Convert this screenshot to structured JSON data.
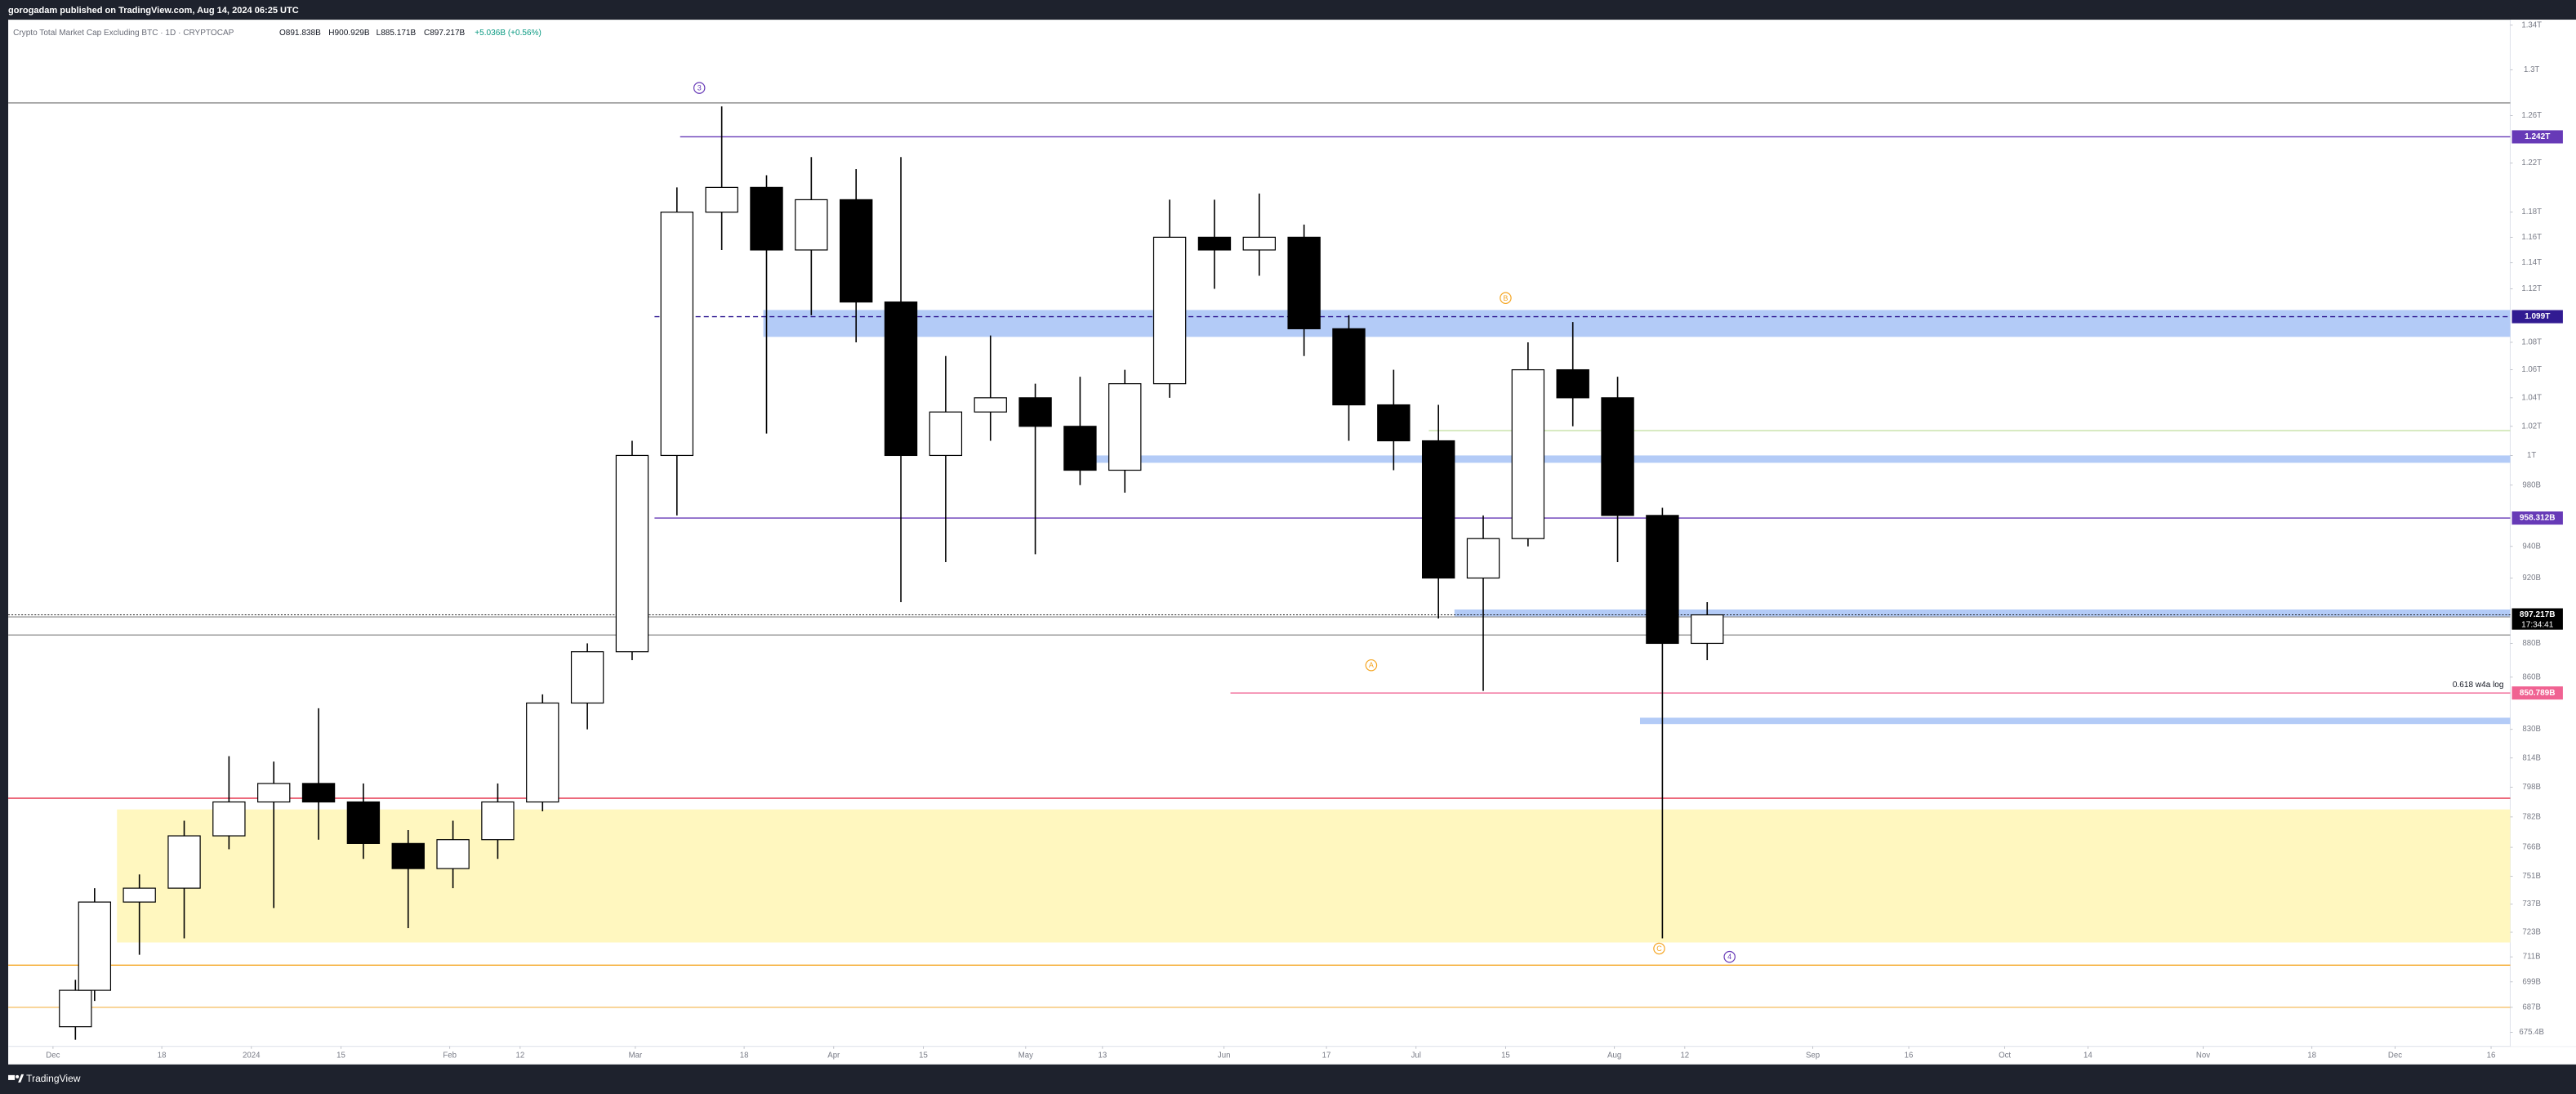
{
  "header": {
    "publisher": "gorogadam published on TradingView.com, Aug 14, 2024 06:25 UTC",
    "footer": "TradingView"
  },
  "chart_data": {
    "type": "candlestick",
    "title": "Crypto Total Market Cap Excluding BTC · 1D · CRYPTOCAP",
    "legend_values": [
      "O891.838B",
      "H900.929B",
      "L885.171B",
      "C897.217B",
      "+5.036B (+0.56%)"
    ],
    "x": [
      "2023-12-01",
      "2023-12-04",
      "2023-12-11",
      "2023-12-18",
      "2023-12-25",
      "2024-01-01",
      "2024-01-08",
      "2024-01-15",
      "2024-01-22",
      "2024-01-29",
      "2024-02-05",
      "2024-02-12",
      "2024-02-19",
      "2024-02-26",
      "2024-03-04",
      "2024-03-11",
      "2024-03-18",
      "2024-03-25",
      "2024-04-01",
      "2024-04-08",
      "2024-04-15",
      "2024-04-22",
      "2024-04-29",
      "2024-05-06",
      "2024-05-13",
      "2024-05-20",
      "2024-05-27",
      "2024-06-03",
      "2024-06-10",
      "2024-06-17",
      "2024-06-24",
      "2024-07-01",
      "2024-07-08",
      "2024-07-15",
      "2024-07-22",
      "2024-07-29",
      "2024-08-05",
      "2024-08-12"
    ],
    "open": [
      678,
      695,
      738,
      745,
      772,
      790,
      800,
      790,
      768,
      755,
      770,
      790,
      845,
      875,
      1000,
      1180,
      1200,
      1150,
      1190,
      1110,
      1000,
      1030,
      1040,
      1020,
      990,
      1050,
      1160,
      1150,
      1160,
      1090,
      1035,
      1010,
      920,
      945,
      1060,
      1040,
      960,
      880
    ],
    "high": [
      700,
      745,
      752,
      780,
      815,
      812,
      842,
      800,
      775,
      780,
      800,
      850,
      880,
      1010,
      1200,
      1268,
      1210,
      1225,
      1215,
      1225,
      1070,
      1085,
      1050,
      1055,
      1060,
      1190,
      1190,
      1195,
      1170,
      1100,
      1060,
      1035,
      960,
      1080,
      1095,
      1055,
      965,
      905
    ],
    "low": [
      672,
      690,
      712,
      720,
      765,
      735,
      770,
      760,
      725,
      745,
      760,
      785,
      830,
      870,
      960,
      1150,
      1015,
      1100,
      1080,
      905,
      930,
      1010,
      935,
      980,
      975,
      1040,
      1120,
      1130,
      1070,
      1010,
      990,
      895,
      852,
      940,
      1020,
      930,
      720,
      870
    ],
    "close": [
      695,
      738,
      745,
      772,
      790,
      800,
      790,
      768,
      755,
      770,
      790,
      845,
      875,
      1000,
      1180,
      1200,
      1150,
      1190,
      1110,
      1000,
      1030,
      1040,
      1020,
      990,
      1050,
      1160,
      1150,
      1160,
      1090,
      1035,
      1010,
      920,
      945,
      1060,
      1040,
      960,
      880,
      897.217
    ],
    "up_color": "#ffffff",
    "down_color": "#000000",
    "wick_color": "#000000",
    "log_scale": true,
    "ylim": [
      669,
      1345
    ],
    "yticks": [
      {
        "value": 1340,
        "label": "1.34T"
      },
      {
        "value": 1300,
        "label": "1.3T"
      },
      {
        "value": 1260,
        "label": "1.26T"
      },
      {
        "value": 1220,
        "label": "1.22T"
      },
      {
        "value": 1180,
        "label": "1.18T"
      },
      {
        "value": 1160,
        "label": "1.16T"
      },
      {
        "value": 1140,
        "label": "1.14T"
      },
      {
        "value": 1120,
        "label": "1.12T"
      },
      {
        "value": 1080,
        "label": "1.08T"
      },
      {
        "value": 1060,
        "label": "1.06T"
      },
      {
        "value": 1040,
        "label": "1.04T"
      },
      {
        "value": 1020,
        "label": "1.02T"
      },
      {
        "value": 1000,
        "label": "1T"
      },
      {
        "value": 980,
        "label": "980B"
      },
      {
        "value": 940,
        "label": "940B"
      },
      {
        "value": 920,
        "label": "920B"
      },
      {
        "value": 880,
        "label": "880B"
      },
      {
        "value": 860,
        "label": "860B"
      },
      {
        "value": 830,
        "label": "830B"
      },
      {
        "value": 814,
        "label": "814B"
      },
      {
        "value": 798,
        "label": "798B"
      },
      {
        "value": 782,
        "label": "782B"
      },
      {
        "value": 766,
        "label": "766B"
      },
      {
        "value": 751,
        "label": "751B"
      },
      {
        "value": 737,
        "label": "737B"
      },
      {
        "value": 723,
        "label": "723B"
      },
      {
        "value": 711,
        "label": "711B"
      },
      {
        "value": 699,
        "label": "699B"
      },
      {
        "value": 687,
        "label": "687B"
      },
      {
        "value": 675.4,
        "label": "675.4B"
      }
    ],
    "xlim": [
      "2023-11-24",
      "2024-12-19"
    ],
    "xticks": [
      {
        "value": "2023-12-01",
        "label": "Dec"
      },
      {
        "value": "2023-12-18",
        "label": "18"
      },
      {
        "value": "2024-01-01",
        "label": "2024"
      },
      {
        "value": "2024-01-15",
        "label": "15"
      },
      {
        "value": "2024-02-01",
        "label": "Feb"
      },
      {
        "value": "2024-02-12",
        "label": "12"
      },
      {
        "value": "2024-03-01",
        "label": "Mar"
      },
      {
        "value": "2024-03-18",
        "label": "18"
      },
      {
        "value": "2024-04-01",
        "label": "Apr"
      },
      {
        "value": "2024-04-15",
        "label": "15"
      },
      {
        "value": "2024-05-01",
        "label": "May"
      },
      {
        "value": "2024-05-13",
        "label": "13"
      },
      {
        "value": "2024-06-01",
        "label": "Jun"
      },
      {
        "value": "2024-06-17",
        "label": "17"
      },
      {
        "value": "2024-07-01",
        "label": "Jul"
      },
      {
        "value": "2024-07-15",
        "label": "15"
      },
      {
        "value": "2024-08-01",
        "label": "Aug"
      },
      {
        "value": "2024-08-12",
        "label": "12"
      },
      {
        "value": "2024-09-01",
        "label": "Sep"
      },
      {
        "value": "2024-09-16",
        "label": "16"
      },
      {
        "value": "2024-10-01",
        "label": "Oct"
      },
      {
        "value": "2024-10-14",
        "label": "14"
      },
      {
        "value": "2024-11-01",
        "label": "Nov"
      },
      {
        "value": "2024-11-18",
        "label": "18"
      },
      {
        "value": "2024-12-01",
        "label": "Dec"
      },
      {
        "value": "2024-12-16",
        "label": "16"
      }
    ],
    "grid": false,
    "zones": [
      {
        "from": "2024-03-21",
        "low": 1084,
        "high": 1104,
        "color": "#b3cbf7"
      },
      {
        "from": "2024-05-08",
        "low": 995,
        "high": 1000,
        "color": "#b3cbf7"
      },
      {
        "from": "2024-07-07",
        "low": 896,
        "high": 900.5,
        "color": "#b3cbf7"
      },
      {
        "from": "2024-08-05",
        "low": 833,
        "high": 836.6,
        "color": "#b3cbf7"
      },
      {
        "from": "2023-12-11",
        "low": 718,
        "high": 786,
        "color": "#fff7bf"
      }
    ],
    "levels": [
      {
        "value": 1271,
        "color": "#888888"
      },
      {
        "value": 1242,
        "label": "1.242T",
        "color": "#673ab7",
        "from": "2024-03-08"
      },
      {
        "value": 1099,
        "label": "1.099T",
        "color": "#311b92",
        "from": "2024-03-04",
        "dashed": true
      },
      {
        "value": 1017,
        "color": "#c5e1a5",
        "from": "2024-07-03"
      },
      {
        "value": 958.312,
        "label": "958.312B",
        "color": "#673ab7",
        "from": "2024-03-04"
      },
      {
        "value": 896,
        "color": "#9e9e9e"
      },
      {
        "value": 897.217,
        "label": "897.217B",
        "color": "#000000",
        "current": true
      },
      {
        "value": 885,
        "color": "#9e9e9e"
      },
      {
        "value": 850.789,
        "label": "850.789B",
        "color": "#f06292",
        "from": "2024-06-02",
        "note": "0.618  w4a log"
      },
      {
        "value": 792,
        "color": "#e53950"
      },
      {
        "value": 707,
        "color": "#f5a623"
      },
      {
        "value": 687,
        "color": "#f5c26b"
      }
    ],
    "countdown": "17:34:41",
    "wave_labels": [
      {
        "label": "3",
        "value": 1284,
        "x": "2024-03-11",
        "color": "#673ab7"
      },
      {
        "label": "B",
        "value": 1113,
        "x": "2024-07-15",
        "color": "#f5a623"
      },
      {
        "label": "A",
        "value": 867,
        "x": "2024-06-24",
        "color": "#f5a623"
      },
      {
        "label": "C",
        "value": 715,
        "x": "2024-08-08",
        "color": "#f5a623"
      },
      {
        "label": "4",
        "value": 711,
        "x": "2024-08-19",
        "color": "#673ab7"
      }
    ]
  }
}
